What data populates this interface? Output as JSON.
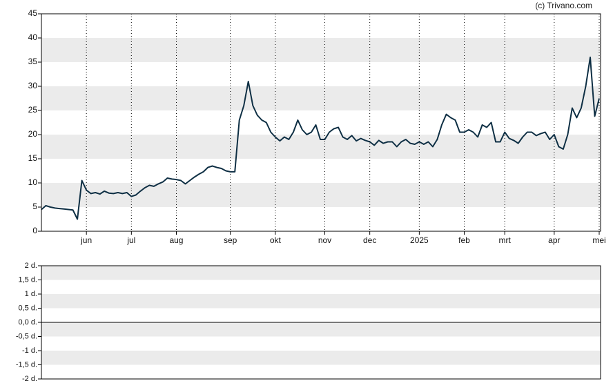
{
  "watermark": "(c) Trivano.com",
  "chart_data": [
    {
      "type": "line",
      "categories": [
        null,
        null,
        null,
        null,
        null,
        null,
        null,
        null,
        null,
        null,
        "jun",
        null,
        null,
        null,
        null,
        null,
        null,
        null,
        null,
        null,
        "jul",
        null,
        null,
        null,
        null,
        null,
        null,
        null,
        null,
        null,
        "aug",
        null,
        null,
        null,
        null,
        null,
        null,
        null,
        null,
        null,
        null,
        null,
        "sep",
        null,
        null,
        null,
        null,
        null,
        null,
        null,
        null,
        null,
        "okt",
        null,
        null,
        null,
        null,
        null,
        null,
        null,
        null,
        null,
        null,
        "nov",
        null,
        null,
        null,
        null,
        null,
        null,
        null,
        null,
        null,
        "dec",
        null,
        null,
        null,
        null,
        null,
        null,
        null,
        null,
        null,
        null,
        "2025",
        null,
        null,
        null,
        null,
        null,
        null,
        null,
        null,
        null,
        "feb",
        null,
        null,
        null,
        null,
        null,
        null,
        null,
        null,
        "mrt",
        null,
        null,
        null,
        null,
        null,
        null,
        null,
        null,
        null,
        null,
        "apr",
        null,
        null,
        null,
        null,
        null,
        null,
        null,
        null,
        null,
        "mei"
      ],
      "series": [
        {
          "color": "#0e2f44",
          "values": [
            4.5,
            5.3,
            5,
            4.8,
            4.7,
            4.6,
            4.5,
            4.4,
            2.5,
            10.5,
            8.5,
            7.8,
            8,
            7.7,
            8.3,
            7.9,
            7.8,
            8,
            7.8,
            8,
            7.2,
            7.5,
            8.3,
            9,
            9.5,
            9.3,
            9.8,
            10.2,
            11,
            10.8,
            10.7,
            10.5,
            9.8,
            10.5,
            11.2,
            11.8,
            12.3,
            13.2,
            13.5,
            13.2,
            13,
            12.5,
            12.3,
            12.3,
            23,
            26,
            31,
            26,
            24,
            23,
            22.5,
            20.5,
            19.5,
            18.7,
            19.5,
            19,
            20.5,
            23,
            21,
            20,
            20.5,
            22,
            19,
            19,
            20.5,
            21.2,
            21.5,
            19.5,
            19,
            19.8,
            18.7,
            19.2,
            18.8,
            18.5,
            17.8,
            18.8,
            18.2,
            18.5,
            18.5,
            17.5,
            18.5,
            19,
            18.2,
            18,
            18.5,
            18,
            18.5,
            17.5,
            19,
            22,
            24.2,
            23.5,
            23,
            20.5,
            20.5,
            21,
            20.5,
            19.5,
            22,
            21.5,
            22.5,
            18.5,
            18.5,
            20.5,
            19.2,
            18.8,
            18.2,
            19.5,
            20.5,
            20.5,
            19.8,
            20.2,
            20.5,
            19,
            20,
            17.5,
            17,
            20,
            25.5,
            23.5,
            25.5,
            30,
            36,
            23.8,
            27.5
          ]
        }
      ],
      "ylim": [
        0,
        45
      ],
      "yticks": [
        0,
        5,
        10,
        15,
        20,
        25,
        30,
        35,
        40,
        45
      ]
    },
    {
      "type": "line",
      "ylim": [
        -2,
        2
      ],
      "yticks": [
        {
          "value": -2,
          "label": "-2 d."
        },
        {
          "value": -1.5,
          "label": "-1,5 d."
        },
        {
          "value": -1,
          "label": "-1 d."
        },
        {
          "value": -0.5,
          "label": "-0,5 d."
        },
        {
          "value": 0,
          "label": "0,0 d."
        },
        {
          "value": 0.5,
          "label": "0,5 d."
        },
        {
          "value": 1,
          "label": "1 d."
        },
        {
          "value": 1.5,
          "label": "1,5 d."
        },
        {
          "value": 2,
          "label": "2 d."
        }
      ]
    }
  ]
}
